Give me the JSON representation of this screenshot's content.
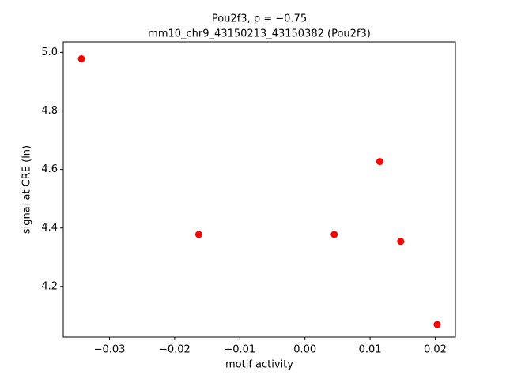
{
  "chart_data": {
    "type": "scatter",
    "title": "Pou2f3, ρ = −0.75",
    "subtitle": "mm10_chr9_43150213_43150382 (Pou2f3)",
    "x_label": "motif activity",
    "y_label": "signal at CRE (ln)",
    "series": [
      {
        "color": "#ff0000",
        "x": [
          -0.0343,
          -0.0163,
          0.0045,
          0.0115,
          0.0147,
          0.0203
        ],
        "values": [
          4.978,
          4.378,
          4.378,
          4.627,
          4.354,
          4.07
        ]
      }
    ],
    "xlim": [
      -0.0371,
      0.0231
    ],
    "ylim": [
      4.027,
      5.036
    ],
    "xticks": [
      {
        "value": -0.03,
        "label": "−0.03"
      },
      {
        "value": -0.02,
        "label": "−0.02"
      },
      {
        "value": -0.01,
        "label": "−0.01"
      },
      {
        "value": 0,
        "label": "0.00"
      },
      0.01,
      0.02
    ],
    "yticks": [
      4.2,
      4.4,
      4.6,
      4.8,
      {
        "value": 5,
        "label": "5.0"
      }
    ]
  }
}
